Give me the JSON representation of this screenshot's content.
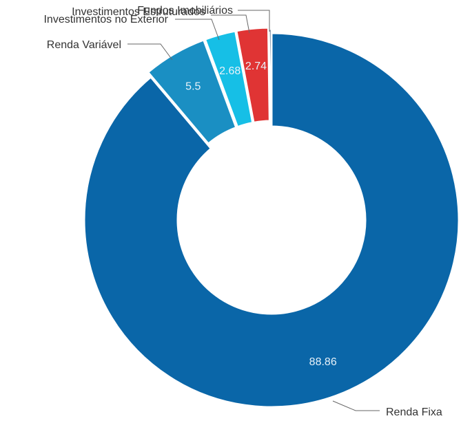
{
  "chart_data": {
    "type": "pie",
    "donut": true,
    "title": "",
    "legend": "none",
    "series": [
      {
        "values": [
          88.86,
          5.5,
          2.68,
          2.74,
          0.22
        ],
        "labels": [
          "Renda Fixa",
          "Renda Variável",
          "Investimentos no Exterior",
          "Investimentos Estruturados",
          "Fundos Imobiliários"
        ],
        "data_labels": [
          "88.86",
          "5.5",
          "2.68",
          "2.74",
          ""
        ],
        "colors": [
          "#0a66a8",
          "#1a8fc3",
          "#16bfe6",
          "#e03434",
          "#1c3f66"
        ]
      }
    ]
  }
}
